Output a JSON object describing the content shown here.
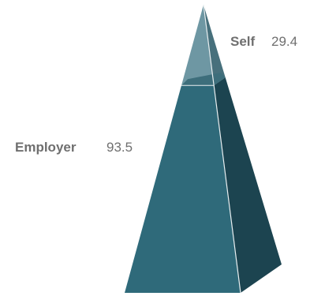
{
  "chart_data": {
    "type": "pyramid",
    "title": "",
    "segments": [
      {
        "name": "Employer",
        "value": 93.5,
        "value_label": "93.5",
        "front_color": "#2f6a7a",
        "side_color": "#1c4450"
      },
      {
        "name": "Self",
        "value": 29.4,
        "value_label": "29.4",
        "front_color": "#6e97a3",
        "side_color": "#47707c"
      }
    ],
    "order": "bottom-to-top",
    "legend": "none"
  }
}
